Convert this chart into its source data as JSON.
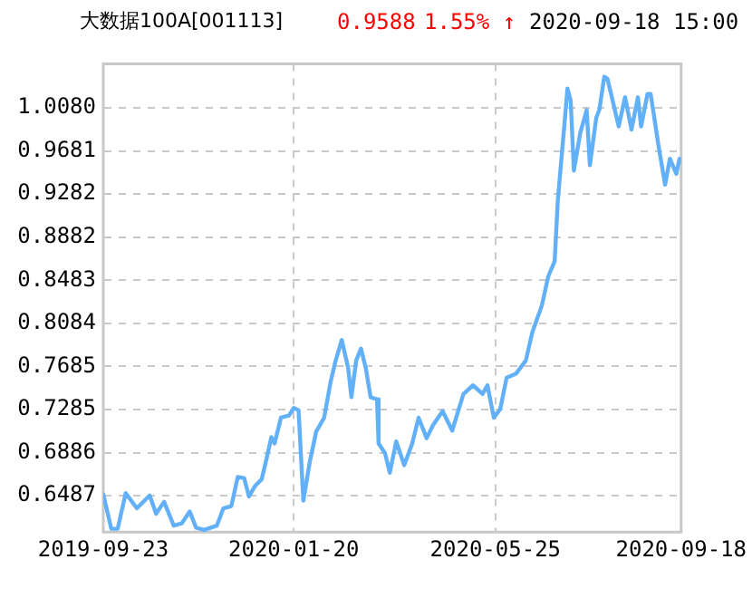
{
  "chart_data": {
    "type": "line",
    "title": "大数据100A[001113]",
    "annotations": [
      "0.9588",
      "1.55% ↑",
      "2020-09-18 15:00"
    ],
    "x": [
      "2019-09-23",
      "2019-09-28",
      "2019-10-02",
      "2019-10-07",
      "2019-10-14",
      "2019-10-22",
      "2019-10-26",
      "2019-10-31",
      "2019-11-06",
      "2019-11-11",
      "2019-11-16",
      "2019-11-20",
      "2019-11-25",
      "2019-12-03",
      "2019-12-07",
      "2019-12-12",
      "2019-12-16",
      "2019-12-20",
      "2019-12-23",
      "2019-12-27",
      "2019-12-31",
      "2020-01-03",
      "2020-01-06",
      "2020-01-08",
      "2020-01-12",
      "2020-01-17",
      "2020-01-20",
      "2020-01-23",
      "2020-01-26",
      "2020-01-30",
      "2020-02-03",
      "2020-02-08",
      "2020-02-12",
      "2020-02-15",
      "2020-02-19",
      "2020-02-23",
      "2020-02-25",
      "2020-02-28",
      "2020-03-02",
      "2020-03-05",
      "2020-03-08",
      "2020-03-12",
      "2020-03-13",
      "2020-03-17",
      "2020-03-20",
      "2020-03-24",
      "2020-03-29",
      "2020-04-03",
      "2020-04-07",
      "2020-04-12",
      "2020-04-16",
      "2020-04-22",
      "2020-04-28",
      "2020-05-05",
      "2020-05-11",
      "2020-05-17",
      "2020-05-20",
      "2020-05-24",
      "2020-05-28",
      "2020-06-01",
      "2020-06-07",
      "2020-06-13",
      "2020-06-17",
      "2020-06-23",
      "2020-06-27",
      "2020-07-01",
      "2020-07-03",
      "2020-07-07",
      "2020-07-09",
      "2020-07-11",
      "2020-07-13",
      "2020-07-17",
      "2020-07-21",
      "2020-07-23",
      "2020-07-27",
      "2020-07-29",
      "2020-08-01",
      "2020-08-03",
      "2020-08-07",
      "2020-08-10",
      "2020-08-14",
      "2020-08-18",
      "2020-08-22",
      "2020-08-24",
      "2020-08-28",
      "2020-08-30",
      "2020-09-04",
      "2020-09-08",
      "2020-09-11",
      "2020-09-13",
      "2020-09-15",
      "2020-09-17",
      "2020-09-18"
    ],
    "series": [
      {
        "color": "#62b0f8",
        "values": [
          0.65,
          0.618,
          0.618,
          0.651,
          0.637,
          0.649,
          0.632,
          0.643,
          0.621,
          0.623,
          0.634,
          0.619,
          0.617,
          0.621,
          0.637,
          0.639,
          0.666,
          0.665,
          0.648,
          0.658,
          0.664,
          0.683,
          0.703,
          0.697,
          0.721,
          0.723,
          0.73,
          0.728,
          0.644,
          0.68,
          0.708,
          0.721,
          0.754,
          0.773,
          0.793,
          0.767,
          0.74,
          0.774,
          0.785,
          0.767,
          0.74,
          0.738,
          0.697,
          0.688,
          0.67,
          0.699,
          0.677,
          0.697,
          0.721,
          0.702,
          0.714,
          0.727,
          0.709,
          0.743,
          0.751,
          0.743,
          0.751,
          0.721,
          0.729,
          0.758,
          0.762,
          0.774,
          0.8,
          0.825,
          0.852,
          0.866,
          0.923,
          0.991,
          1.026,
          1.015,
          0.95,
          0.985,
          1.006,
          0.955,
          0.999,
          1.007,
          1.037,
          1.035,
          1.01,
          0.991,
          1.018,
          0.988,
          1.018,
          0.991,
          1.021,
          1.021,
          0.972,
          0.937,
          0.961,
          0.954,
          0.947,
          0.961,
          0.959
        ]
      }
    ],
    "xlim": [
      "2019-09-23",
      "2020-09-18"
    ],
    "xticks": [
      "2019-09-23",
      "2020-01-20",
      "2020-05-25",
      "2020-09-18"
    ],
    "ylim": [
      0.615,
      1.049
    ],
    "yticks": [
      0.6487,
      0.6886,
      0.7285,
      0.7685,
      0.8084,
      0.8483,
      0.8882,
      0.9282,
      0.9681,
      {
        "value": 1.008,
        "label": "1.0080"
      }
    ],
    "grid": true,
    "legend": false,
    "marker": "none",
    "line_style": "solid"
  }
}
